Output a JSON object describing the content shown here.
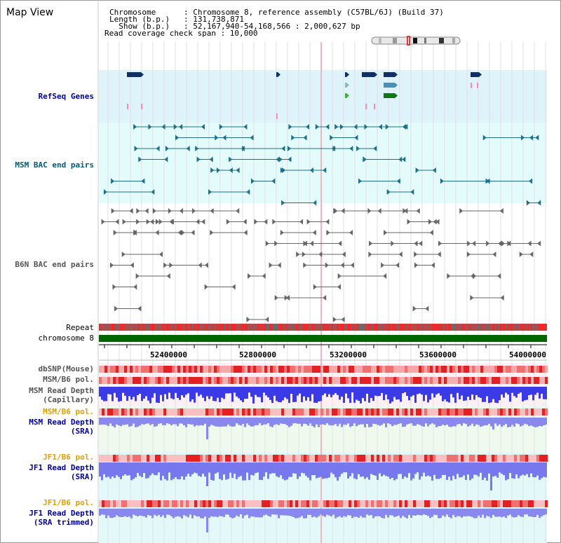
{
  "view": {
    "title": "Map View"
  },
  "header": {
    "lines": [
      "Chromosome      : Chromosome 8, reference assembly (C57BL/6J) (Build 37)",
      "Length (b.p.)   : 131,738,871",
      "  Show (b.p.)   : 52,167,940-54,168,566 : 2,000,627 bp",
      "Read coverage check span : 10,000"
    ]
  },
  "tracks": {
    "refseq": "RefSeq Genes",
    "msm_bac": "MSM BAC end pairs",
    "b6n_bac": "B6N BAC end pairs",
    "repeat": "Repeat",
    "chromosome": "chromosome 8",
    "dbsnp": "dbSNP(Mouse)",
    "msm_b6_pol_1": "MSM/B6 pol.",
    "msm_read_depth_cap_1": "MSM Read Depth",
    "msm_read_depth_cap_2": "(Capillary)",
    "msm_b6_pol_2": "MSM/B6 pol.",
    "msm_read_depth_sra_1": "MSM Read Depth",
    "msm_read_depth_sra_2": "(SRA)",
    "jf1_b6_pol_1": "JF1/B6 pol.",
    "jf1_read_depth_sra_1": "JF1 Read Depth",
    "jf1_read_depth_sra_2": "(SRA)",
    "jf1_b6_pol_2": "JF1/B6 pol.",
    "jf1_read_depth_trim_1": "JF1 Read Depth",
    "jf1_read_depth_trim_2": "(SRA trimmed)"
  },
  "axis": {
    "ticks": [
      "52400000",
      "52800000",
      "53200000",
      "53600000",
      "54000000"
    ]
  },
  "colors": {
    "refseq_bg": "#dff3fb",
    "msm_bg": "#e3fbfb",
    "track_bg": "#eefaee",
    "chrom_green": "#006600",
    "gene_navy": "#0f2f66",
    "gene_steel": "#4a90b8",
    "gene_green": "#117711",
    "bac_teal": "#1e6f8a",
    "bac_gray": "#666666",
    "depth_blue": "#2222dd",
    "sra_blue": "#8888ee"
  }
}
